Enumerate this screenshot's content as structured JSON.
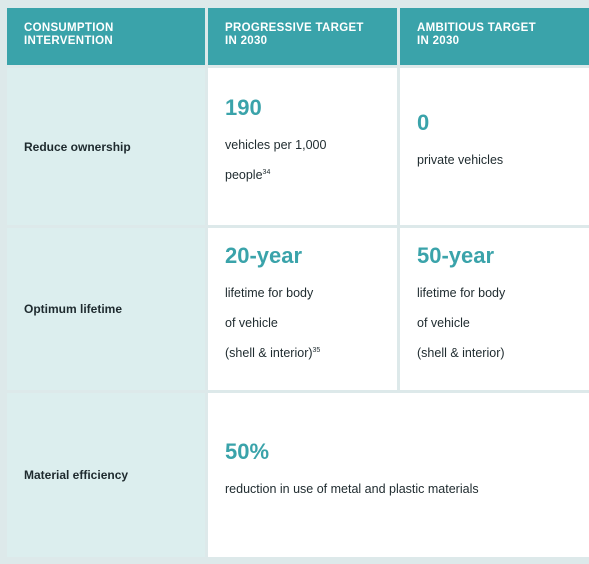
{
  "header": {
    "col1": "CONSUMPTION\nINTERVENTION",
    "col2": "PROGRESSIVE TARGET\nIN 2030",
    "col3": "AMBITIOUS TARGET\nIN 2030"
  },
  "rows": [
    {
      "label": "Reduce ownership",
      "progressive": {
        "value": "190",
        "desc_line1": "vehicles per 1,000",
        "desc_line2": "people",
        "footnote": "34"
      },
      "ambitious": {
        "value": "0",
        "desc_line1": "private vehicles"
      }
    },
    {
      "label": "Optimum lifetime",
      "progressive": {
        "value": "20-year",
        "desc_line1": "lifetime for body",
        "desc_line2": "of vehicle",
        "desc_line3": "(shell & interior)",
        "footnote": "35"
      },
      "ambitious": {
        "value": "50-year",
        "desc_line1": "lifetime for body",
        "desc_line2": "of vehicle",
        "desc_line3": "(shell & interior)"
      }
    },
    {
      "label": "Material efficiency",
      "combined": {
        "value": "50%",
        "desc_line1": "reduction in use of metal and plastic materials"
      }
    }
  ],
  "colors": {
    "header_bg": "#3aa3aa",
    "label_bg": "#dceeee",
    "accent": "#3aa3aa",
    "text": "#1e2a2e",
    "grid_line": "#dde9ea"
  }
}
